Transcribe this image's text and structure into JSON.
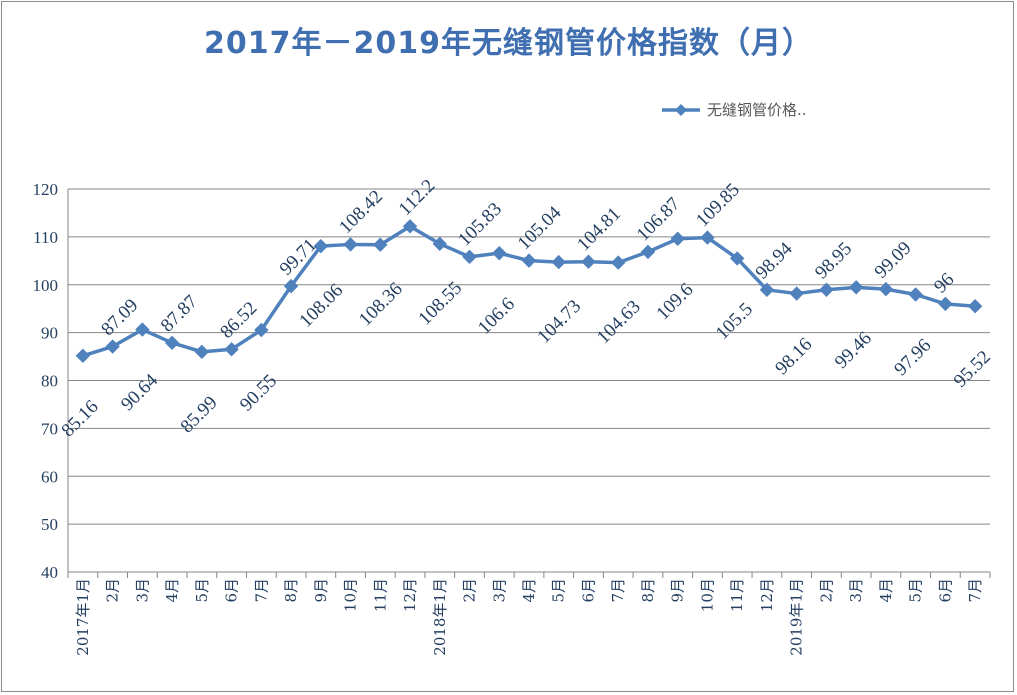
{
  "title": "2017年－2019年无缝钢管价格指数（月）",
  "chart_data": {
    "type": "line",
    "title": "2017年－2019年无缝钢管价格指数（月）",
    "xlabel": "",
    "ylabel": "",
    "ylim": [
      40,
      120
    ],
    "yticks": [
      40,
      50,
      60,
      70,
      80,
      90,
      100,
      110,
      120
    ],
    "grid": true,
    "legend_position": "top-right",
    "categories": [
      "2017年1月",
      "2月",
      "3月",
      "4月",
      "5月",
      "6月",
      "7月",
      "8月",
      "9月",
      "10月",
      "11月",
      "12月",
      "2018年1月",
      "2月",
      "3月",
      "4月",
      "5月",
      "6月",
      "7月",
      "8月",
      "9月",
      "10月",
      "11月",
      "12月",
      "2019年1月",
      "2月",
      "3月",
      "4月",
      "5月",
      "6月",
      "7月"
    ],
    "series": [
      {
        "name": "无缝钢管价格..",
        "color": "#4f81bd",
        "values": [
          85.16,
          87.09,
          90.64,
          87.87,
          85.99,
          86.52,
          90.55,
          99.71,
          108.06,
          108.42,
          108.36,
          112.2,
          108.55,
          105.83,
          106.6,
          105.04,
          104.73,
          104.81,
          104.63,
          106.87,
          109.6,
          109.85,
          105.5,
          98.94,
          98.16,
          98.95,
          99.46,
          99.09,
          97.96,
          96,
          95.52
        ],
        "labels": [
          "85.16",
          "87.09",
          "90.64",
          "87.87",
          "85.99",
          "86.52",
          "90.55",
          "99.71",
          "108.06",
          "108.42",
          "108.36",
          "112.2",
          "108.55",
          "105.83",
          "106.6",
          "105.04",
          "104.73",
          "104.81",
          "104.63",
          "106.87",
          "109.6",
          "109.85",
          "105.5",
          "98.94",
          "98.16",
          "98.95",
          "99.46",
          "99.09",
          "97.96",
          "96",
          "95.52"
        ]
      }
    ]
  }
}
